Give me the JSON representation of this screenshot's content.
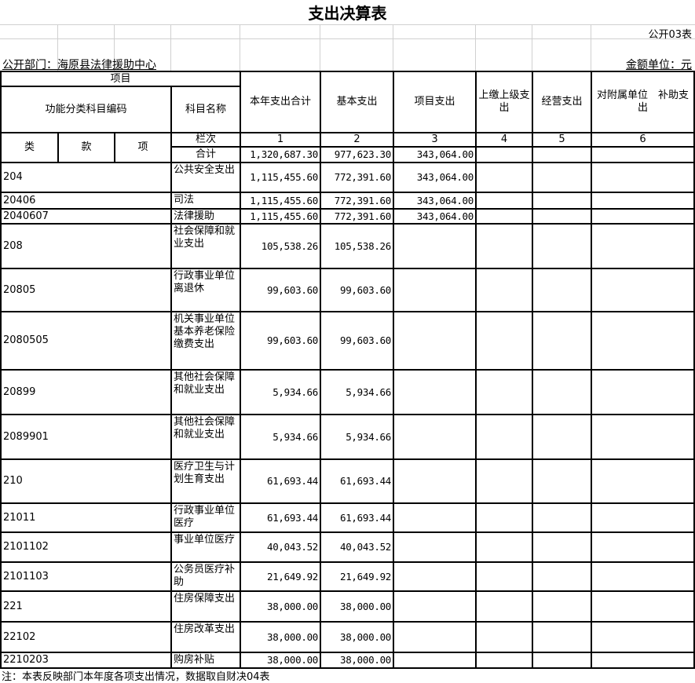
{
  "title": "支出决算表",
  "table_no": "公开03表",
  "department": "公开部门：海原县法律援助中心",
  "unit": "金额单位：元",
  "headers": {
    "item": "项目",
    "code": "功能分类科目编码",
    "name": "科目名称",
    "total": "本年支出合计",
    "basic": "基本支出",
    "project": "项目支出",
    "upper": "上缴上级支出",
    "business": "经营支出",
    "subsidy": "对附属单位　补助支出",
    "lei": "类",
    "kuan": "款",
    "xiang": "项",
    "col_no": "栏次",
    "n1": "1",
    "n2": "2",
    "n3": "3",
    "n4": "4",
    "n5": "5",
    "n6": "6",
    "sum": "合计"
  },
  "totals": {
    "total": "1,320,687.30",
    "basic": "977,623.30",
    "project": "343,064.00"
  },
  "rows": [
    {
      "code": "204",
      "name": "公共安全支出",
      "total": "1,115,455.60",
      "basic": "772,391.60",
      "project": "343,064.00"
    },
    {
      "code": "20406",
      "name": "司法",
      "total": "1,115,455.60",
      "basic": "772,391.60",
      "project": "343,064.00"
    },
    {
      "code": "2040607",
      "name": "法律援助",
      "total": "1,115,455.60",
      "basic": "772,391.60",
      "project": "343,064.00"
    },
    {
      "code": "208",
      "name": "社会保障和就业支出",
      "total": "105,538.26",
      "basic": "105,538.26",
      "project": ""
    },
    {
      "code": "20805",
      "name": "行政事业单位离退休",
      "total": "99,603.60",
      "basic": "99,603.60",
      "project": ""
    },
    {
      "code": "2080505",
      "name": "机关事业单位基本养老保险缴费支出",
      "total": "99,603.60",
      "basic": "99,603.60",
      "project": ""
    },
    {
      "code": "20899",
      "name": "其他社会保障和就业支出",
      "total": "5,934.66",
      "basic": "5,934.66",
      "project": ""
    },
    {
      "code": "2089901",
      "name": "其他社会保障和就业支出",
      "total": "5,934.66",
      "basic": "5,934.66",
      "project": ""
    },
    {
      "code": "210",
      "name": "医疗卫生与计划生育支出",
      "total": "61,693.44",
      "basic": "61,693.44",
      "project": ""
    },
    {
      "code": "21011",
      "name": "行政事业单位医疗",
      "total": "61,693.44",
      "basic": "61,693.44",
      "project": ""
    },
    {
      "code": "2101102",
      "name": "事业单位医疗",
      "total": "40,043.52",
      "basic": "40,043.52",
      "project": ""
    },
    {
      "code": "2101103",
      "name": "公务员医疗补助",
      "total": "21,649.92",
      "basic": "21,649.92",
      "project": ""
    },
    {
      "code": "221",
      "name": "住房保障支出",
      "total": "38,000.00",
      "basic": "38,000.00",
      "project": ""
    },
    {
      "code": "22102",
      "name": "住房改革支出",
      "total": "38,000.00",
      "basic": "38,000.00",
      "project": ""
    },
    {
      "code": "2210203",
      "name": "购房补贴",
      "total": "38,000.00",
      "basic": "38,000.00",
      "project": ""
    }
  ],
  "note": "注：本表反映部门本年度各项支出情况，数据取自财决04表"
}
